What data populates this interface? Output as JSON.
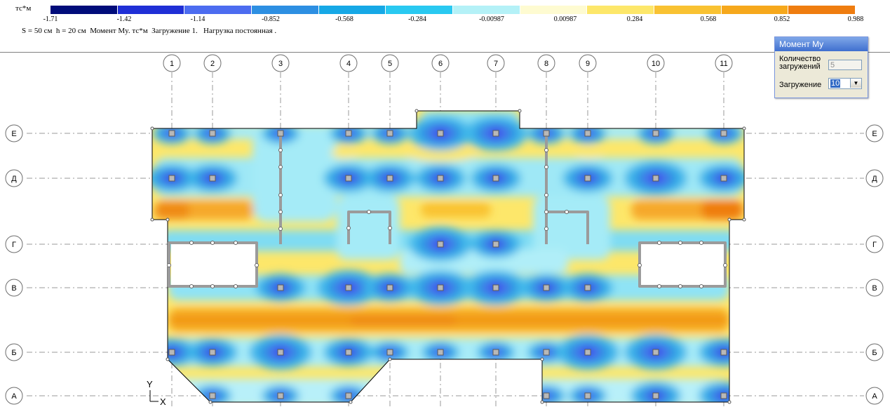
{
  "legend": {
    "unit": "тс*м",
    "colors": [
      "#000c7a",
      "#1f2fd6",
      "#4c6cf0",
      "#2d8fe2",
      "#16a8e6",
      "#29c9f1",
      "#b4f1f7",
      "#fefbd1",
      "#fde76a",
      "#f9c232",
      "#f6a81c",
      "#ef7d10"
    ],
    "ticks": [
      "-1.71",
      "-1.42",
      "-1.14",
      "-0.852",
      "-0.568",
      "-0.284",
      "-0.00987",
      "0.00987",
      "0.284",
      "0.568",
      "0.852",
      "0.988"
    ]
  },
  "info": {
    "thickness_label": "S =",
    "thickness_value": "50 см",
    "height_label": "h =",
    "height_value": "20 см",
    "factor": "Момент My. тс*м",
    "loadcase": "Загружение 1.",
    "load_type": "Нагрузка постоянная ."
  },
  "panel": {
    "title": "Момент My",
    "count_label_1": "Количество",
    "count_label_2": "загружений",
    "count_value": "5",
    "loadcase_label": "Загружение",
    "loadcase_value": "10"
  },
  "grid": {
    "columns": [
      "1",
      "2",
      "3",
      "4",
      "5",
      "6",
      "7",
      "8",
      "9",
      "10",
      "11"
    ],
    "rows": [
      "Е",
      "Д",
      "Г",
      "В",
      "Б",
      "А"
    ]
  },
  "axes": {
    "y": "Y",
    "x": "X"
  }
}
